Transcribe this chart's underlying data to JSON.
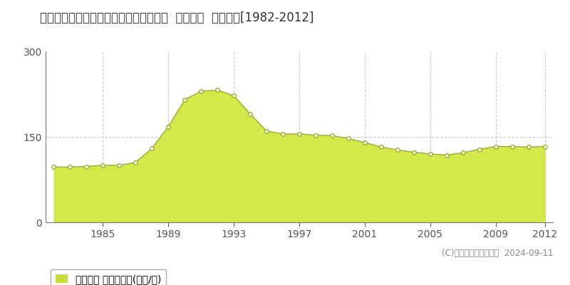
{
  "title": "東京都江戸川区平井４丁目８５６番３外  地価公示  地価推移[1982-2012]",
  "years": [
    1982,
    1983,
    1984,
    1985,
    1986,
    1987,
    1988,
    1989,
    1990,
    1991,
    1992,
    1993,
    1994,
    1995,
    1996,
    1997,
    1998,
    1999,
    2000,
    2001,
    2002,
    2003,
    2004,
    2005,
    2006,
    2007,
    2008,
    2009,
    2010,
    2011,
    2012
  ],
  "values": [
    97,
    97,
    98,
    100,
    100,
    105,
    130,
    168,
    215,
    230,
    232,
    222,
    190,
    160,
    155,
    155,
    153,
    152,
    147,
    140,
    132,
    127,
    123,
    120,
    118,
    122,
    128,
    133,
    133,
    132,
    133
  ],
  "fill_color": "#d4e84a",
  "line_color": "#9aaf1e",
  "marker_color": "#ffffff",
  "marker_edge_color": "#9aaf1e",
  "bg_color": "#ffffff",
  "grid_color": "#cccccc",
  "ylim": [
    0,
    300
  ],
  "yticks": [
    0,
    150,
    300
  ],
  "xticks": [
    1985,
    1989,
    1993,
    1997,
    2001,
    2005,
    2009,
    2012
  ],
  "legend_label": "地価公示 平均坪単価(万円/坪)",
  "legend_color": "#c8dc3c",
  "copyright_text": "(C)土地価格ドットコム  2024-09-11",
  "title_fontsize": 12,
  "tick_fontsize": 10,
  "legend_fontsize": 10
}
